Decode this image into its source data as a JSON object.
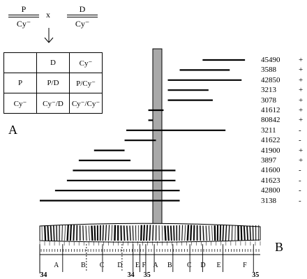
{
  "cross": {
    "left": {
      "top": "P",
      "bottom": "Cy⁻"
    },
    "operator": "x",
    "right": {
      "top": "D",
      "bottom": "Cy⁻"
    }
  },
  "punnett": {
    "header": [
      "",
      "D",
      "Cy⁻"
    ],
    "rows": [
      [
        "P",
        "P/D",
        "P/Cy⁻"
      ],
      [
        "Cy⁻",
        "Cy⁻/D",
        "Cy⁻/Cy⁻"
      ]
    ]
  },
  "panel_labels": {
    "a": "A",
    "b": "B"
  },
  "deficiencies": [
    {
      "name": "45490",
      "sign": "+",
      "start": 34.92,
      "end": 35.42
    },
    {
      "name": "3588",
      "sign": "+",
      "start": 34.65,
      "end": 35.24
    },
    {
      "name": "42850",
      "sign": "+",
      "start": 34.51,
      "end": 35.38
    },
    {
      "name": "3213",
      "sign": "+",
      "start": 34.51,
      "end": 34.99
    },
    {
      "name": "3078",
      "sign": "+",
      "start": 34.51,
      "end": 35.04
    },
    {
      "name": "41612",
      "sign": "+",
      "start": 34.28,
      "end": 34.46
    },
    {
      "name": "80842",
      "sign": "+",
      "start": 34.28,
      "end": 34.33
    },
    {
      "name": "3211",
      "sign": "-",
      "start": 34.02,
      "end": 35.19
    },
    {
      "name": "41622",
      "sign": "-",
      "start": 34.0,
      "end": 34.37
    },
    {
      "name": "41900",
      "sign": "+",
      "start": 33.64,
      "end": 34.0
    },
    {
      "name": "3897",
      "sign": "+",
      "start": 33.46,
      "end": 34.07
    },
    {
      "name": "41600",
      "sign": "-",
      "start": 33.39,
      "end": 34.6
    },
    {
      "name": "41623",
      "sign": "-",
      "start": 33.32,
      "end": 34.6
    },
    {
      "name": "42800",
      "sign": "-",
      "start": 33.18,
      "end": 34.65
    },
    {
      "name": "3138",
      "sign": "-",
      "start": 33.0,
      "end": 34.65
    }
  ],
  "cytology": {
    "divisions": [
      {
        "label": "34",
        "pos": 33.02
      },
      {
        "label": "34",
        "pos": 34.05
      },
      {
        "label": "35",
        "pos": 34.24
      },
      {
        "label": "35",
        "pos": 35.52
      }
    ],
    "subdivisions": [
      {
        "label": "A",
        "pos": 33.1
      },
      {
        "label": "B",
        "pos": 33.42
      },
      {
        "label": "C",
        "pos": 33.64
      },
      {
        "label": "D",
        "pos": 33.85
      },
      {
        "label": "E",
        "pos": 34.06
      },
      {
        "label": "F",
        "pos": 34.14
      },
      {
        "label": "A",
        "pos": 34.27
      },
      {
        "label": "B",
        "pos": 34.44
      },
      {
        "label": "C",
        "pos": 34.67
      },
      {
        "label": "D",
        "pos": 34.83
      },
      {
        "label": "E",
        "pos": 35.02
      },
      {
        "label": "F",
        "pos": 35.33
      }
    ]
  }
}
